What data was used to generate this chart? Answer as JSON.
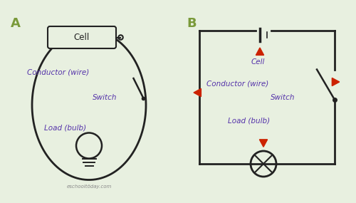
{
  "bg_color": "#e8f0e0",
  "line_color": "#222222",
  "label_color": "#5533aa",
  "arrow_color": "#cc2200",
  "label_color_AB": "#7a9a3a",
  "label_A": "A",
  "label_B": "B",
  "cell_text": "Cell",
  "conductor_text": "Conductor (wire)",
  "switch_text": "Switch",
  "load_text": "Load (bulb)",
  "watermark": "eschooltöday.com"
}
